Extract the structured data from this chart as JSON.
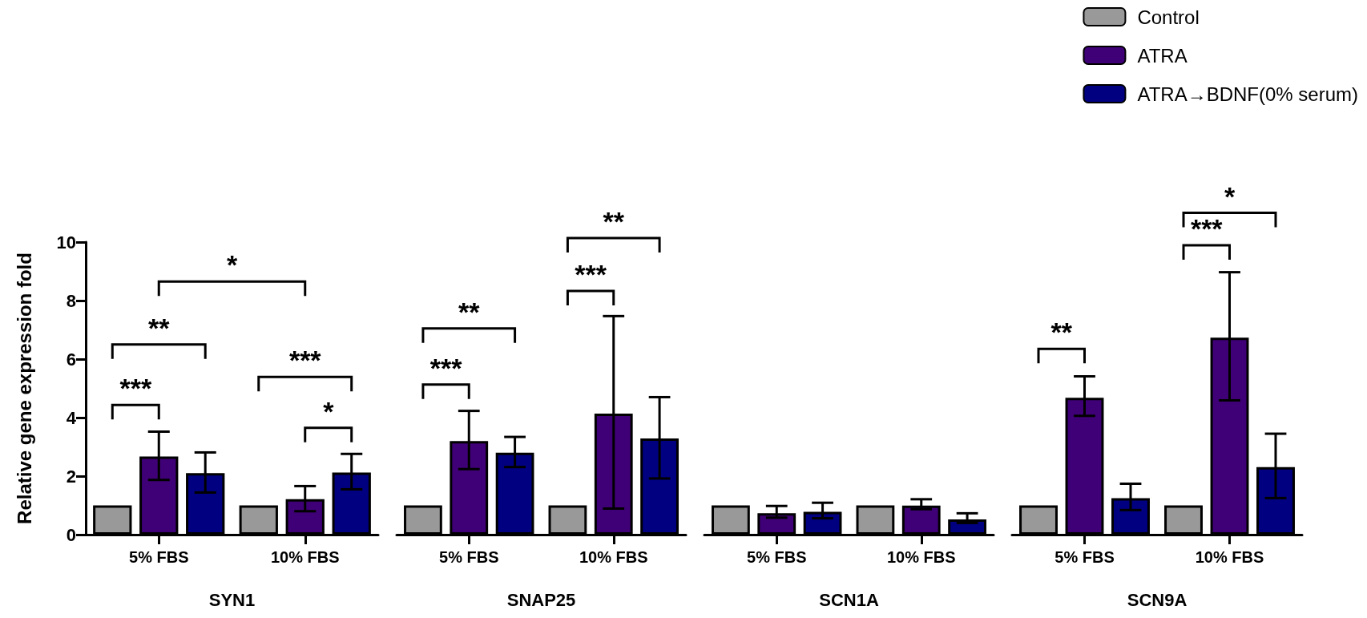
{
  "chart_data": [
    {
      "type": "bar",
      "xlabel": "SYN1",
      "ylabel": "Relative gene expression fold",
      "categories": [
        "5% FBS",
        "10% FBS"
      ],
      "ylim": [
        0,
        10
      ],
      "yticks": [
        0,
        2,
        4,
        6,
        8,
        10
      ],
      "grid": false,
      "series": [
        {
          "color": "#999999",
          "values": [
            1,
            1
          ]
        },
        {
          "color": "#3f0077",
          "values": [
            2.67,
            1.21
          ],
          "errors": [
            [
              1.87,
              3.52
            ],
            [
              0.8,
              1.66
            ]
          ]
        },
        {
          "color": "#000080",
          "values": [
            2.1,
            2.12
          ],
          "errors": [
            [
              1.44,
              2.81
            ],
            [
              1.55,
              2.76
            ]
          ]
        }
      ],
      "annotations": [
        "***",
        "**",
        "*",
        "***",
        "*"
      ]
    },
    {
      "type": "bar",
      "xlabel": "SNAP25",
      "categories": [
        "5% FBS",
        "10% FBS"
      ],
      "ylim": [
        0,
        10
      ],
      "yticks": [
        0,
        2,
        4,
        6,
        8,
        10
      ],
      "tick_labels": "x",
      "grid": false,
      "series": [
        {
          "color": "#999999",
          "values": [
            1,
            1
          ]
        },
        {
          "color": "#3f0077",
          "values": [
            3.2,
            4.14
          ],
          "errors": [
            [
              2.24,
              4.23
            ],
            [
              0.89,
              7.47
            ]
          ]
        },
        {
          "color": "#000080",
          "values": [
            2.8,
            3.29
          ],
          "errors": [
            [
              2.31,
              3.34
            ],
            [
              1.92,
              4.7
            ]
          ]
        }
      ],
      "annotations": [
        "***",
        "**",
        "***",
        "**"
      ]
    },
    {
      "type": "bar",
      "xlabel": "SCN1A",
      "categories": [
        "5% FBS",
        "10% FBS"
      ],
      "ylim": [
        0,
        10
      ],
      "yticks": [
        0,
        2,
        4,
        6,
        8,
        10
      ],
      "tick_labels": "x",
      "grid": false,
      "series": [
        {
          "color": "#999999",
          "values": [
            1,
            1
          ]
        },
        {
          "color": "#3f0077",
          "values": [
            0.73,
            0.99
          ],
          "errors": [
            [
              0.58,
              0.98
            ],
            [
              0.87,
              1.21
            ]
          ]
        },
        {
          "color": "#000080",
          "values": [
            0.78,
            0.52
          ],
          "errors": [
            [
              0.56,
              1.09
            ],
            [
              0.4,
              0.73
            ]
          ]
        }
      ]
    },
    {
      "type": "bar",
      "xlabel": "SCN9A",
      "categories": [
        "5% FBS",
        "10% FBS"
      ],
      "ylim": [
        0,
        10
      ],
      "yticks": [
        0,
        2,
        4,
        6,
        8,
        10
      ],
      "tick_labels": "x",
      "grid": false,
      "legend": "top right",
      "series": [
        {
          "name": "Control",
          "color": "#999999",
          "values": [
            1,
            1
          ]
        },
        {
          "name": "ATRA",
          "color": "#3f0077",
          "values": [
            4.68,
            6.73
          ],
          "errors": [
            [
              4.06,
              5.41
            ],
            [
              4.59,
              8.97
            ]
          ]
        },
        {
          "name": "ATRA→BDNF(0% serum)",
          "color": "#000080",
          "values": [
            1.25,
            2.31
          ],
          "errors": [
            [
              0.84,
              1.74
            ],
            [
              1.25,
              3.45
            ]
          ]
        }
      ],
      "annotations": [
        "**",
        "***",
        "*"
      ]
    }
  ]
}
